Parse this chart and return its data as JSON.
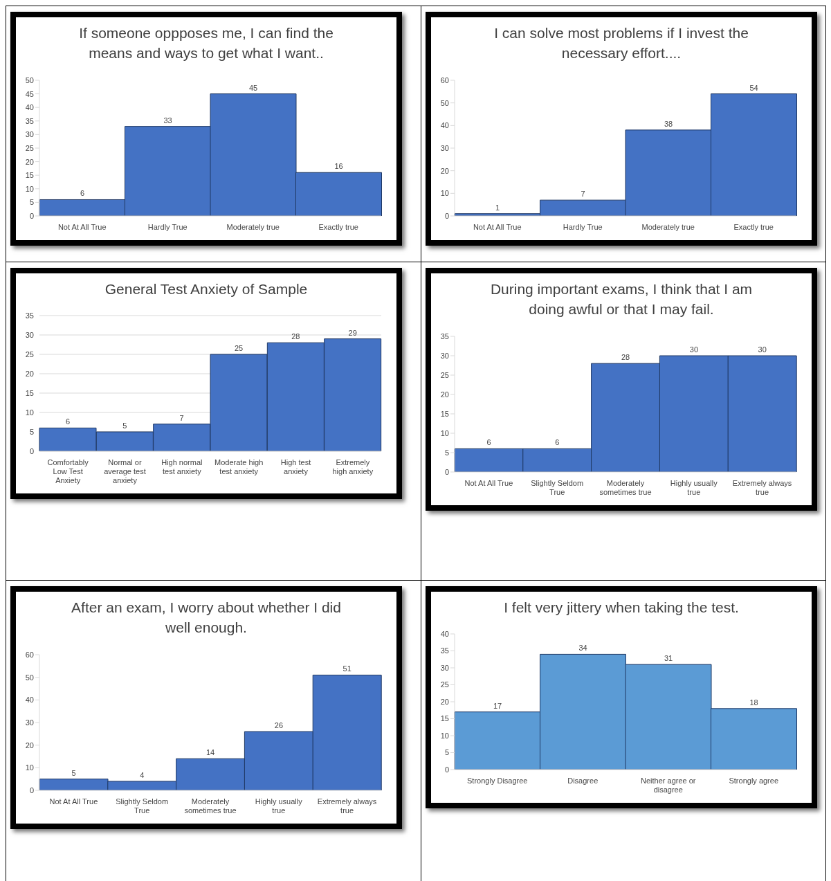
{
  "chart_data": [
    {
      "type": "bar",
      "title": "If someone oppposes me, I can find the means and ways to get what I want..",
      "categories": [
        "Not At All True",
        "Hardly True",
        "Moderately true",
        "Exactly true"
      ],
      "values": [
        6,
        33,
        45,
        16
      ],
      "color": "#4472c4",
      "ylim": [
        0,
        50
      ],
      "yticks": [
        0,
        5,
        10,
        15,
        20,
        25,
        30,
        35,
        40,
        45,
        50
      ],
      "data_labels": true
    },
    {
      "type": "bar",
      "title": "I can solve most problems if I invest the necessary effort....",
      "categories": [
        "Not At All True",
        "Hardly True",
        "Moderately true",
        "Exactly true"
      ],
      "values": [
        1,
        7,
        38,
        54
      ],
      "color": "#4472c4",
      "ylim": [
        0,
        60
      ],
      "yticks": [
        0,
        10,
        20,
        30,
        40,
        50,
        60
      ],
      "data_labels": true
    },
    {
      "type": "bar",
      "title": "General Test Anxiety of Sample",
      "categories": [
        "Comfortably Low Test Anxiety",
        "Normal or average test anxiety",
        "High normal test anxiety",
        "Moderate high test anxiety",
        "High test anxiety",
        "Extremely high anxiety"
      ],
      "values": [
        6,
        5,
        7,
        25,
        28,
        29
      ],
      "color": "#4472c4",
      "ylim": [
        0,
        35
      ],
      "yticks": [
        0,
        5,
        10,
        15,
        20,
        25,
        30,
        35
      ],
      "grid": "y",
      "data_labels": true
    },
    {
      "type": "bar",
      "title": "During important exams, I think that I am doing awful or that I may fail.",
      "categories": [
        "Not At All True",
        "Slightly Seldom True",
        "Moderately sometimes true",
        "Highly usually true",
        "Extremely always true"
      ],
      "values": [
        6,
        6,
        28,
        30,
        30
      ],
      "color": "#4472c4",
      "ylim": [
        0,
        35
      ],
      "yticks": [
        0,
        5,
        10,
        15,
        20,
        25,
        30,
        35
      ],
      "data_labels": true
    },
    {
      "type": "bar",
      "title": "After an exam, I worry about whether I did well enough.",
      "categories": [
        "Not At All True",
        "Slightly Seldom True",
        "Moderately sometimes true",
        "Highly usually true",
        "Extremely always true"
      ],
      "values": [
        5,
        4,
        14,
        26,
        51
      ],
      "color": "#4472c4",
      "ylim": [
        0,
        60
      ],
      "yticks": [
        0,
        10,
        20,
        30,
        40,
        50,
        60
      ],
      "data_labels": true
    },
    {
      "type": "bar",
      "title": "I felt very jittery when taking the test.",
      "categories": [
        "Strongly Disagree",
        "Disagree",
        "Neither agree or disagree",
        "Strongly agree"
      ],
      "values": [
        17,
        34,
        31,
        18
      ],
      "color": "#5b9bd5",
      "ylim": [
        0,
        40
      ],
      "yticks": [
        0,
        5,
        10,
        15,
        20,
        25,
        30,
        35,
        40
      ],
      "data_labels": true
    }
  ]
}
